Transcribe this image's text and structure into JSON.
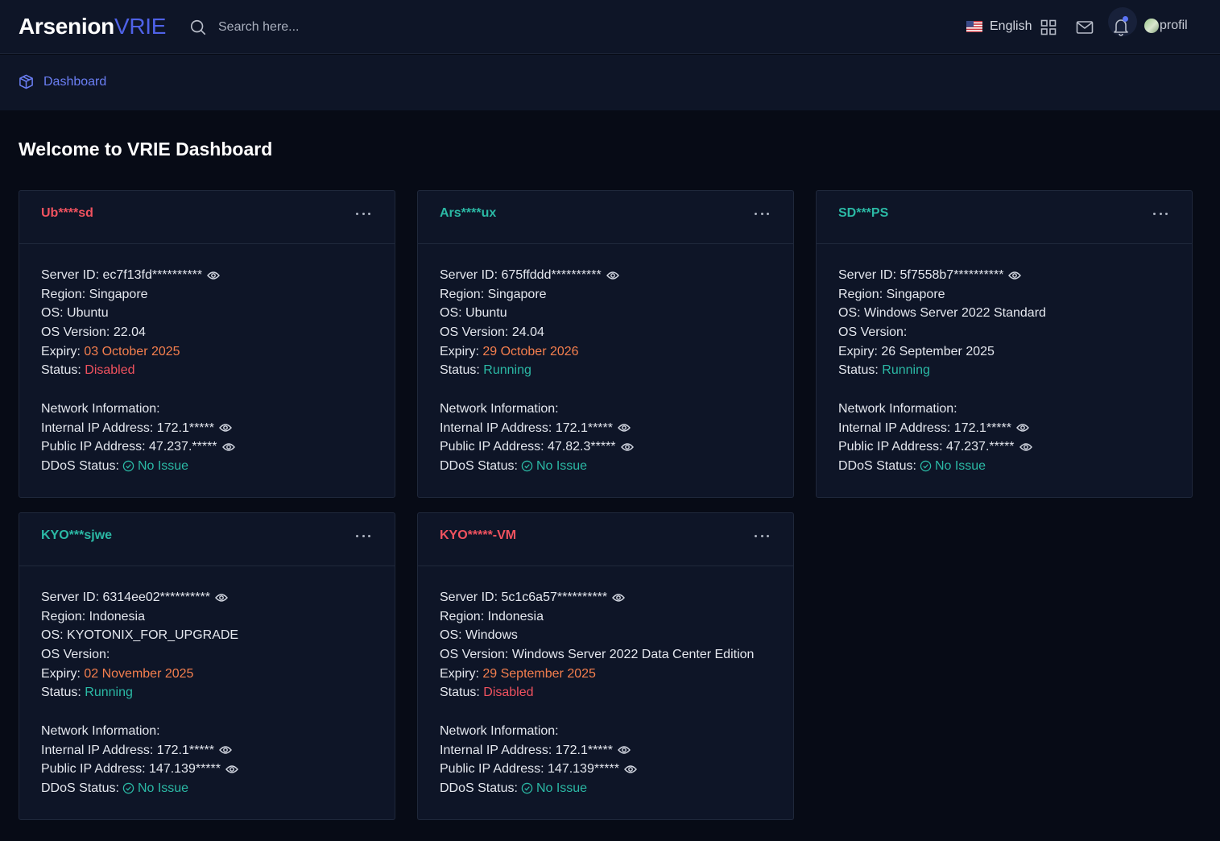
{
  "header": {
    "logo_primary": "Arsenion",
    "logo_secondary": "VRIE",
    "search_placeholder": "Search here...",
    "language": "English",
    "profile_alt": "profil"
  },
  "breadcrumb": {
    "label": "Dashboard"
  },
  "page": {
    "title": "Welcome to VRIE Dashboard"
  },
  "labels": {
    "server_id": "Server ID:",
    "region": "Region:",
    "os": "OS:",
    "os_version": "OS Version:",
    "expiry": "Expiry:",
    "status": "Status:",
    "network": "Network Information:",
    "internal_ip": "Internal IP Address:",
    "public_ip": "Public IP Address:",
    "ddos": "DDoS Status:"
  },
  "colors": {
    "accent": "#4f62e8",
    "danger": "#f0525f",
    "success": "#2bb9a5",
    "warning": "#f57f4e"
  },
  "servers": [
    {
      "name": "Ub****sd",
      "name_color": "red",
      "server_id": "ec7f13fd**********",
      "region": "Singapore",
      "os": "Ubuntu",
      "os_version": "22.04",
      "expiry": "03 October 2025",
      "expiry_color": "orange",
      "status": "Disabled",
      "status_color": "red",
      "internal_ip": "172.1*****",
      "public_ip": "47.237.*****",
      "ddos": "No Issue"
    },
    {
      "name": "Ars****ux",
      "name_color": "teal",
      "server_id": "675ffddd**********",
      "region": "Singapore",
      "os": "Ubuntu",
      "os_version": "24.04",
      "expiry": "29 October 2026",
      "expiry_color": "orange",
      "status": "Running",
      "status_color": "teal",
      "internal_ip": "172.1*****",
      "public_ip": "47.82.3*****",
      "ddos": "No Issue"
    },
    {
      "name": "SD***PS",
      "name_color": "teal",
      "server_id": "5f7558b7**********",
      "region": "Singapore",
      "os": "Windows Server 2022 Standard",
      "os_version": "",
      "expiry": "26 September 2025",
      "expiry_color": "plain",
      "status": "Running",
      "status_color": "teal",
      "internal_ip": "172.1*****",
      "public_ip": "47.237.*****",
      "ddos": "No Issue"
    },
    {
      "name": "KYO***sjwe",
      "name_color": "teal",
      "server_id": "6314ee02**********",
      "region": "Indonesia",
      "os": "KYOTONIX_FOR_UPGRADE",
      "os_version": "",
      "expiry": "02 November 2025",
      "expiry_color": "orange",
      "status": "Running",
      "status_color": "teal",
      "internal_ip": "172.1*****",
      "public_ip": "147.139*****",
      "ddos": "No Issue"
    },
    {
      "name": "KYO*****-VM",
      "name_color": "red",
      "server_id": "5c1c6a57**********",
      "region": "Indonesia",
      "os": "Windows",
      "os_version": "Windows Server 2022 Data Center Edition",
      "expiry": "29 September 2025",
      "expiry_color": "orange",
      "status": "Disabled",
      "status_color": "red",
      "internal_ip": "172.1*****",
      "public_ip": "147.139*****",
      "ddos": "No Issue"
    }
  ]
}
